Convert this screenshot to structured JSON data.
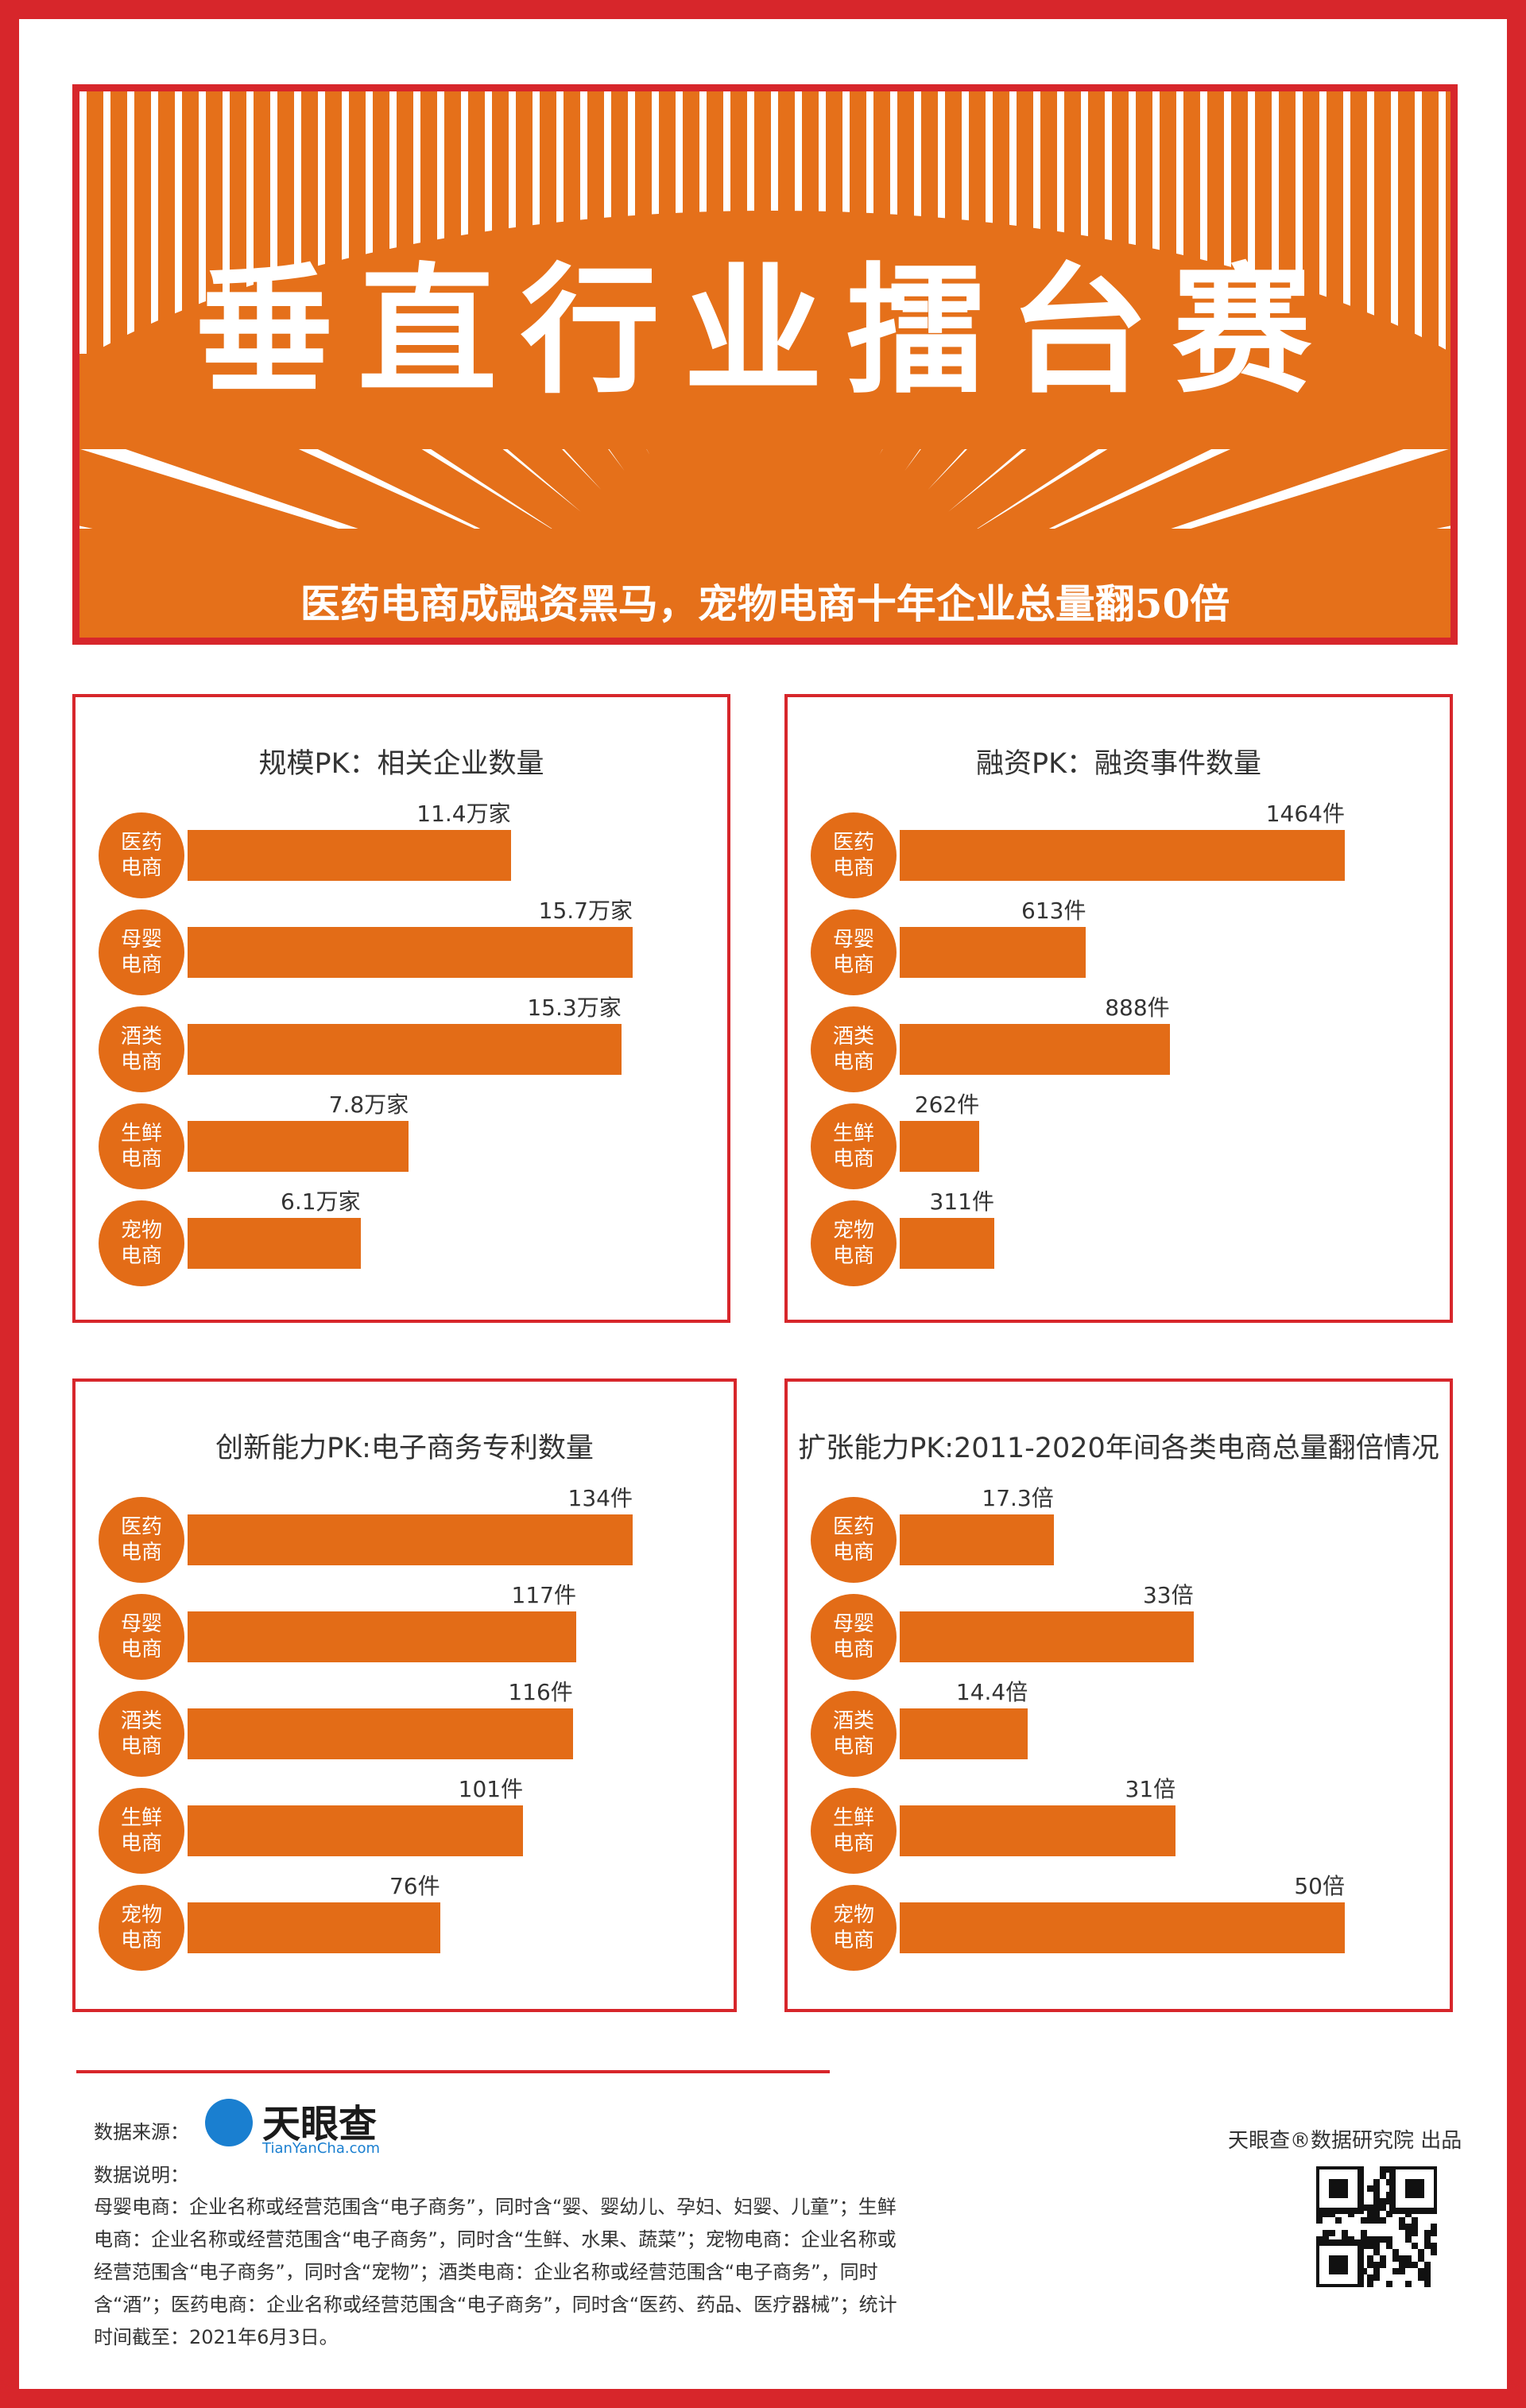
{
  "header": {
    "title": "垂直行业擂台赛",
    "subtitle": "医药电商成融资黑马，宠物电商十年企业总量翻50倍"
  },
  "chart_data": [
    {
      "type": "bar",
      "orientation": "horizontal",
      "title": "规模PK：相关企业数量",
      "categories": [
        "医药电商",
        "母婴电商",
        "酒类电商",
        "生鲜电商",
        "宠物电商"
      ],
      "values": [
        11.4,
        15.7,
        15.3,
        7.8,
        6.1
      ],
      "value_labels": [
        "11.4万家",
        "15.7万家",
        "15.3万家",
        "7.8万家",
        "6.1万家"
      ],
      "color": "#e36c17"
    },
    {
      "type": "bar",
      "orientation": "horizontal",
      "title": "融资PK：融资事件数量",
      "categories": [
        "医药电商",
        "母婴电商",
        "酒类电商",
        "生鲜电商",
        "宠物电商"
      ],
      "values": [
        1464,
        613,
        888,
        262,
        311
      ],
      "value_labels": [
        "1464件",
        "613件",
        "888件",
        "262件",
        "311件"
      ],
      "color": "#e36c17"
    },
    {
      "type": "bar",
      "orientation": "horizontal",
      "title": "创新能力PK:电子商务专利数量",
      "categories": [
        "医药电商",
        "母婴电商",
        "酒类电商",
        "生鲜电商",
        "宠物电商"
      ],
      "values": [
        134,
        117,
        116,
        101,
        76
      ],
      "value_labels": [
        "134件",
        "117件",
        "116件",
        "101件",
        "76件"
      ],
      "color": "#e36c17"
    },
    {
      "type": "bar",
      "orientation": "horizontal",
      "title": "扩张能力PK:2011-2020年间各类电商总量翻倍情况",
      "categories": [
        "医药电商",
        "母婴电商",
        "酒类电商",
        "生鲜电商",
        "宠物电商"
      ],
      "values": [
        17.3,
        33,
        14.4,
        31,
        50
      ],
      "value_labels": [
        "17.3倍",
        "33倍",
        "14.4倍",
        "31倍",
        "50倍"
      ],
      "color": "#e36c17"
    }
  ],
  "footer": {
    "source_label": "数据来源：",
    "logo_name": "天眼查",
    "logo_url": "TianYanCha.com",
    "note_label": "数据说明：",
    "note": "母婴电商：企业名称或经营范围含“电子商务”，同时含“婴、婴幼儿、孕妇、妇婴、儿童”；生鲜电商：企业名称或经营范围含“电子商务”，同时含“生鲜、水果、蔬菜”；宠物电商：企业名称或经营范围含“电子商务”，同时含“宠物”；酒类电商：企业名称或经营范围含“电子商务”，同时含“酒”；医药电商：企业名称或经营范围含“电子商务”，同时含“医药、药品、医疗器械”；统计时间截至：2021年6月3日。",
    "credit": "天眼查®数据研究院 出品"
  }
}
